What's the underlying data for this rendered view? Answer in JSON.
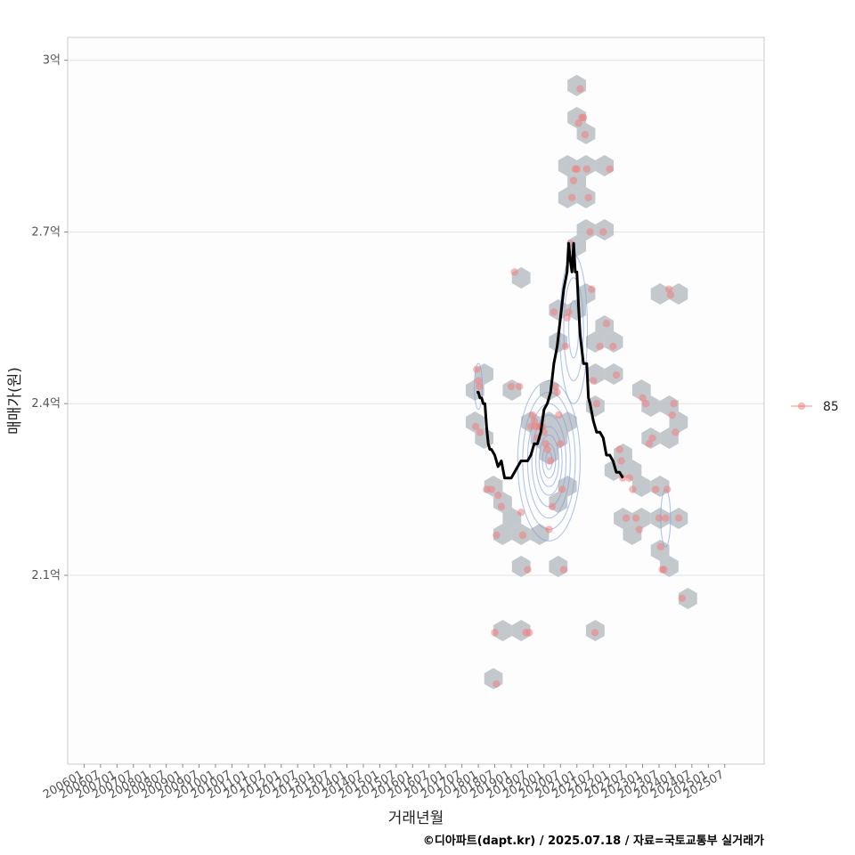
{
  "chart_data": {
    "type": "scatter",
    "xlabel": "거래년월",
    "ylabel": "매매가(원)",
    "caption": "©디아파트(dapt.kr) / 2025.07.18 / 자료=국토교통부 실거래가",
    "x_ticks": [
      "200601",
      "200607",
      "200701",
      "200707",
      "200801",
      "200807",
      "200901",
      "200907",
      "201001",
      "201007",
      "201101",
      "201107",
      "201201",
      "201207",
      "201301",
      "201307",
      "201401",
      "201407",
      "201501",
      "201507",
      "201601",
      "201607",
      "201701",
      "201707",
      "201801",
      "201807",
      "201901",
      "201907",
      "202001",
      "202007",
      "202101",
      "202107",
      "202201",
      "202207",
      "202301",
      "202307",
      "202401",
      "202407",
      "202501",
      "202507"
    ],
    "y_ticks": [
      {
        "value": 2.1,
        "label": "2.1억"
      },
      {
        "value": 2.4,
        "label": "2.4억"
      },
      {
        "value": 2.7,
        "label": "2.7억"
      },
      {
        "value": 3.0,
        "label": "3억"
      }
    ],
    "ylim": [
      1.77,
      3.04
    ],
    "xlim": [
      2005.5,
      2026.7
    ],
    "grid": true,
    "legend": {
      "position": "right",
      "entries": [
        {
          "label": "85",
          "color": "#f08080"
        }
      ]
    },
    "colors": {
      "points": "#f08080",
      "hex": "#b8bec4",
      "trend": "#000000",
      "contour": "#7f9fe0"
    },
    "series": [
      {
        "name": "85",
        "points": [
          [
            2017.95,
            2.46
          ],
          [
            2018.0,
            2.44
          ],
          [
            2018.03,
            2.43
          ],
          [
            2017.92,
            2.36
          ],
          [
            2018.05,
            2.35
          ],
          [
            2018.25,
            2.25
          ],
          [
            2018.4,
            2.25
          ],
          [
            2018.55,
            2.17
          ],
          [
            2018.6,
            2.24
          ],
          [
            2018.7,
            2.22
          ],
          [
            2018.5,
            2.0
          ],
          [
            2018.55,
            1.91
          ],
          [
            2019.0,
            2.43
          ],
          [
            2019.1,
            2.63
          ],
          [
            2019.25,
            2.43
          ],
          [
            2019.3,
            2.21
          ],
          [
            2019.35,
            2.17
          ],
          [
            2019.45,
            2.0
          ],
          [
            2019.5,
            2.11
          ],
          [
            2019.55,
            2.0
          ],
          [
            2019.6,
            2.36
          ],
          [
            2019.65,
            2.38
          ],
          [
            2019.7,
            2.37
          ],
          [
            2019.75,
            2.36
          ],
          [
            2019.8,
            2.34
          ],
          [
            2019.85,
            2.36
          ],
          [
            2019.9,
            2.36
          ],
          [
            2019.95,
            2.36
          ],
          [
            2020.0,
            2.35
          ],
          [
            2020.05,
            2.33
          ],
          [
            2020.1,
            2.32
          ],
          [
            2020.15,
            2.18
          ],
          [
            2020.2,
            2.3
          ],
          [
            2020.25,
            2.22
          ],
          [
            2020.3,
            2.56
          ],
          [
            2020.35,
            2.43
          ],
          [
            2020.4,
            2.42
          ],
          [
            2020.45,
            2.38
          ],
          [
            2020.5,
            2.33
          ],
          [
            2020.55,
            2.25
          ],
          [
            2020.6,
            2.11
          ],
          [
            2020.65,
            2.5
          ],
          [
            2020.7,
            2.55
          ],
          [
            2020.75,
            2.56
          ],
          [
            2020.8,
            2.68
          ],
          [
            2020.85,
            2.76
          ],
          [
            2020.9,
            2.79
          ],
          [
            2020.95,
            2.81
          ],
          [
            2021.0,
            2.81
          ],
          [
            2021.05,
            2.89
          ],
          [
            2021.1,
            2.95
          ],
          [
            2021.15,
            2.9
          ],
          [
            2021.2,
            2.9
          ],
          [
            2021.25,
            2.87
          ],
          [
            2021.3,
            2.81
          ],
          [
            2021.35,
            2.76
          ],
          [
            2021.4,
            2.7
          ],
          [
            2021.45,
            2.6
          ],
          [
            2021.5,
            2.44
          ],
          [
            2021.55,
            2.0
          ],
          [
            2021.6,
            2.4
          ],
          [
            2021.7,
            2.5
          ],
          [
            2021.8,
            2.7
          ],
          [
            2021.9,
            2.54
          ],
          [
            2022.0,
            2.81
          ],
          [
            2022.1,
            2.5
          ],
          [
            2022.2,
            2.45
          ],
          [
            2022.3,
            2.32
          ],
          [
            2022.35,
            2.3
          ],
          [
            2022.4,
            2.27
          ],
          [
            2022.5,
            2.2
          ],
          [
            2022.6,
            2.27
          ],
          [
            2022.7,
            2.25
          ],
          [
            2022.8,
            2.2
          ],
          [
            2022.9,
            2.18
          ],
          [
            2023.0,
            2.41
          ],
          [
            2023.1,
            2.4
          ],
          [
            2023.2,
            2.33
          ],
          [
            2023.3,
            2.34
          ],
          [
            2023.4,
            2.25
          ],
          [
            2023.5,
            2.2
          ],
          [
            2023.55,
            2.15
          ],
          [
            2023.6,
            2.11
          ],
          [
            2023.65,
            2.11
          ],
          [
            2023.7,
            2.2
          ],
          [
            2023.75,
            2.25
          ],
          [
            2023.8,
            2.6
          ],
          [
            2023.85,
            2.59
          ],
          [
            2023.9,
            2.38
          ],
          [
            2023.95,
            2.4
          ],
          [
            2024.0,
            2.35
          ],
          [
            2024.1,
            2.2
          ],
          [
            2024.2,
            2.06
          ]
        ]
      }
    ],
    "trend": [
      [
        2017.95,
        2.42
      ],
      [
        2018.0,
        2.42
      ],
      [
        2018.05,
        2.41
      ],
      [
        2018.1,
        2.41
      ],
      [
        2018.15,
        2.4
      ],
      [
        2018.2,
        2.4
      ],
      [
        2018.25,
        2.36
      ],
      [
        2018.3,
        2.33
      ],
      [
        2018.35,
        2.32
      ],
      [
        2018.4,
        2.32
      ],
      [
        2018.5,
        2.31
      ],
      [
        2018.6,
        2.29
      ],
      [
        2018.7,
        2.3
      ],
      [
        2018.8,
        2.27
      ],
      [
        2018.9,
        2.27
      ],
      [
        2019.0,
        2.27
      ],
      [
        2019.1,
        2.28
      ],
      [
        2019.2,
        2.29
      ],
      [
        2019.3,
        2.3
      ],
      [
        2019.4,
        2.3
      ],
      [
        2019.5,
        2.3
      ],
      [
        2019.6,
        2.31
      ],
      [
        2019.7,
        2.33
      ],
      [
        2019.8,
        2.33
      ],
      [
        2019.9,
        2.35
      ],
      [
        2020.0,
        2.39
      ],
      [
        2020.1,
        2.4
      ],
      [
        2020.2,
        2.42
      ],
      [
        2020.3,
        2.47
      ],
      [
        2020.4,
        2.5
      ],
      [
        2020.5,
        2.55
      ],
      [
        2020.6,
        2.6
      ],
      [
        2020.7,
        2.63
      ],
      [
        2020.75,
        2.68
      ],
      [
        2020.8,
        2.65
      ],
      [
        2020.85,
        2.63
      ],
      [
        2020.9,
        2.68
      ],
      [
        2020.95,
        2.63
      ],
      [
        2021.0,
        2.63
      ],
      [
        2021.05,
        2.57
      ],
      [
        2021.1,
        2.52
      ],
      [
        2021.2,
        2.47
      ],
      [
        2021.3,
        2.47
      ],
      [
        2021.35,
        2.41
      ],
      [
        2021.4,
        2.4
      ],
      [
        2021.5,
        2.37
      ],
      [
        2021.6,
        2.35
      ],
      [
        2021.7,
        2.35
      ],
      [
        2021.8,
        2.34
      ],
      [
        2021.9,
        2.31
      ],
      [
        2022.0,
        2.31
      ],
      [
        2022.1,
        2.3
      ],
      [
        2022.2,
        2.28
      ],
      [
        2022.3,
        2.28
      ],
      [
        2022.4,
        2.27
      ]
    ]
  }
}
